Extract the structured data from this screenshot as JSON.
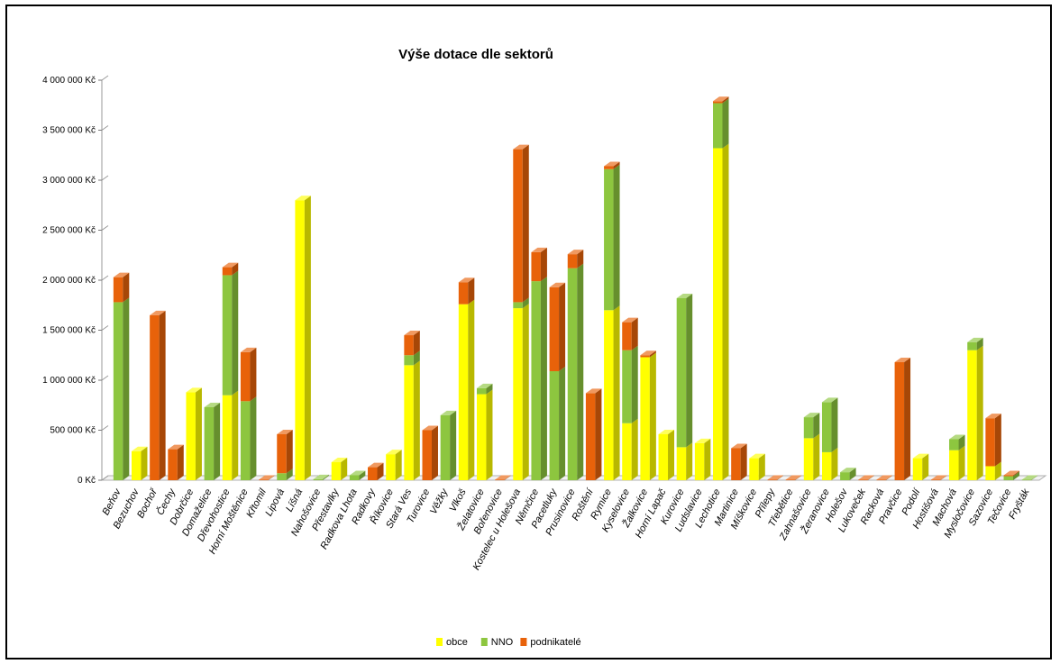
{
  "chart_data": {
    "type": "bar",
    "stacked": true,
    "three_d": true,
    "title": "Výše dotace dle sektorů",
    "ylim": [
      0,
      4000000
    ],
    "yticks": [
      "0 Kč",
      "500 000 Kč",
      "1 000 000 Kč",
      "1 500 000 Kč",
      "2 000 000 Kč",
      "2 500 000 Kč",
      "3 000 000 Kč",
      "3 500 000 Kč",
      "4 000 000 Kč"
    ],
    "grid": false,
    "legend_position": "bottom",
    "categories": [
      "Beňov",
      "Bezuchov",
      "Bochoř",
      "Čechy",
      "Dobrčice",
      "Domaželice",
      "Dřevohostice",
      "Horní Moštěnice",
      "Křtomil",
      "Lipová",
      "Líšná",
      "Nahošovice",
      "Přestavlky",
      "Radkova Lhota",
      "Radkovy",
      "Říkovice",
      "Stará Ves",
      "Turovice",
      "Věžky",
      "Vlkoš",
      "Želatovice",
      "Bořenovice",
      "Kostelec u Holešova",
      "Němčice",
      "Pacetluky",
      "Prusinovice",
      "Roštění",
      "Rymice",
      "Kyselovice",
      "Žalkovice",
      "Horní Lapač",
      "Kurovice",
      "Ludslavice",
      "Lechotice",
      "Martinice",
      "Míškovice",
      "Přílepy",
      "Třebětice",
      "Zahnašovice",
      "Žeranovice",
      "Holešov",
      "Lukoveček",
      "Racková",
      "Pravčice",
      "Podolí",
      "Hostišová",
      "Machová",
      "Mysločovice",
      "Sazovice",
      "Tečovice",
      "Fryšták"
    ],
    "series": [
      {
        "name": "obce",
        "color": "#ffff00",
        "values": [
          0,
          290000,
          0,
          0,
          880000,
          0,
          850000,
          0,
          0,
          0,
          2800000,
          0,
          180000,
          0,
          0,
          260000,
          1150000,
          0,
          0,
          1760000,
          860000,
          0,
          1720000,
          0,
          0,
          0,
          0,
          1700000,
          570000,
          1230000,
          460000,
          330000,
          370000,
          3320000,
          0,
          220000,
          0,
          0,
          420000,
          280000,
          0,
          0,
          0,
          0,
          220000,
          0,
          300000,
          1300000,
          140000,
          0,
          0
        ]
      },
      {
        "name": "NNO",
        "color": "#8dc63f",
        "values": [
          1780000,
          0,
          0,
          0,
          0,
          730000,
          1200000,
          790000,
          0,
          70000,
          0,
          10000,
          0,
          50000,
          0,
          0,
          100000,
          0,
          650000,
          0,
          60000,
          0,
          60000,
          1990000,
          1090000,
          2120000,
          0,
          1410000,
          730000,
          0,
          0,
          1490000,
          0,
          450000,
          0,
          0,
          0,
          0,
          210000,
          500000,
          80000,
          0,
          0,
          0,
          0,
          0,
          110000,
          80000,
          0,
          40000,
          5000
        ]
      },
      {
        "name": "podnikatelé",
        "color": "#e8620a",
        "values": [
          250000,
          0,
          1650000,
          310000,
          0,
          0,
          80000,
          490000,
          5000,
          390000,
          0,
          0,
          0,
          0,
          130000,
          0,
          200000,
          500000,
          0,
          220000,
          0,
          5000,
          1530000,
          290000,
          840000,
          140000,
          870000,
          30000,
          280000,
          20000,
          0,
          0,
          0,
          20000,
          320000,
          0,
          5000,
          5000,
          0,
          0,
          0,
          5000,
          5000,
          1180000,
          0,
          5000,
          0,
          0,
          480000,
          10000,
          0
        ]
      }
    ]
  }
}
